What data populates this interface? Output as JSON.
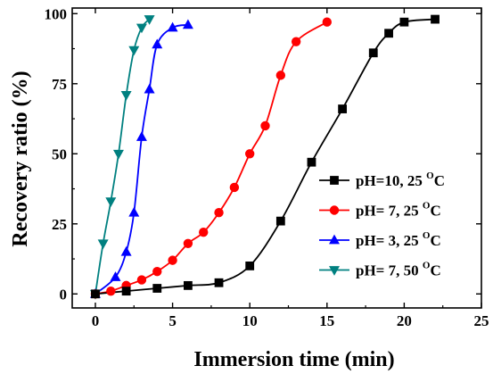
{
  "chart_data": {
    "type": "line",
    "xlabel": "Immersion time (min)",
    "ylabel": "Recovery ratio (%)",
    "xlim": [
      -1.5,
      25
    ],
    "ylim": [
      -5,
      102
    ],
    "xticks": [
      0,
      5,
      10,
      15,
      20,
      25
    ],
    "yticks": [
      0,
      25,
      50,
      75,
      100
    ],
    "grid": false,
    "legend_position": "center-right",
    "series": [
      {
        "label_main": "pH=10, 25 ",
        "label_sup": "O",
        "label_end": "C",
        "color": "#000000",
        "marker": "square",
        "x": [
          0,
          2,
          4,
          6,
          8,
          10,
          12,
          14,
          16,
          18,
          19,
          20,
          22
        ],
        "y": [
          0,
          1,
          2,
          3,
          4,
          10,
          26,
          47,
          66,
          86,
          93,
          97,
          98
        ]
      },
      {
        "label_main": "pH=  7, 25 ",
        "label_sup": "O",
        "label_end": "C",
        "color": "#ff0000",
        "marker": "circle",
        "x": [
          0,
          1,
          2,
          3,
          4,
          5,
          6,
          7,
          8,
          9,
          10,
          11,
          12,
          13,
          15
        ],
        "y": [
          0,
          1,
          3,
          5,
          8,
          12,
          18,
          22,
          29,
          38,
          50,
          60,
          78,
          90,
          97
        ]
      },
      {
        "label_main": "pH=  3, 25 ",
        "label_sup": "O",
        "label_end": "C",
        "color": "#0000ff",
        "marker": "triangle-up",
        "x": [
          0,
          1.3,
          2,
          2.5,
          3,
          3.5,
          4,
          5,
          6
        ],
        "y": [
          0,
          6,
          15,
          29,
          56,
          73,
          89,
          95,
          96
        ]
      },
      {
        "label_main": "pH=  7, 50 ",
        "label_sup": "O",
        "label_end": "C",
        "color": "#008080",
        "marker": "triangle-down",
        "x": [
          0,
          0.5,
          1,
          1.5,
          2,
          2.5,
          3,
          3.5
        ],
        "y": [
          0,
          18,
          33,
          50,
          71,
          87,
          95,
          98
        ]
      }
    ]
  }
}
